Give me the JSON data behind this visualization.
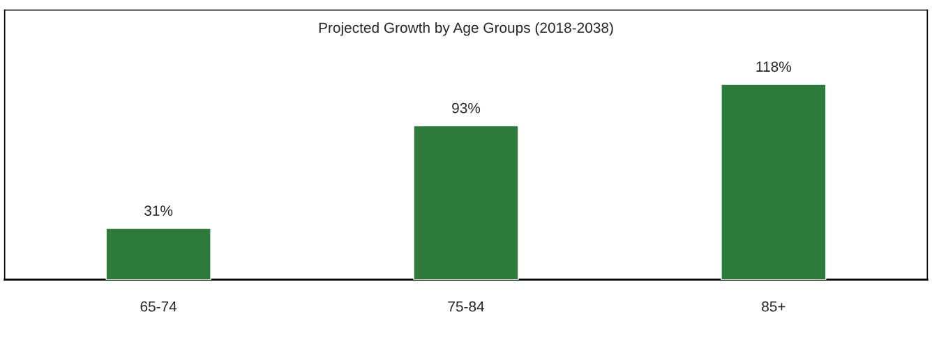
{
  "chart_data": {
    "type": "bar",
    "title": "Projected Growth by Age Groups (2018-2038)",
    "categories": [
      "65-74",
      "75-84",
      "85+"
    ],
    "values": [
      31,
      93,
      118
    ],
    "color": "#2e7a3a",
    "value_labels": [
      "31%",
      "93%",
      "118%"
    ],
    "tick_labels": "x"
  }
}
